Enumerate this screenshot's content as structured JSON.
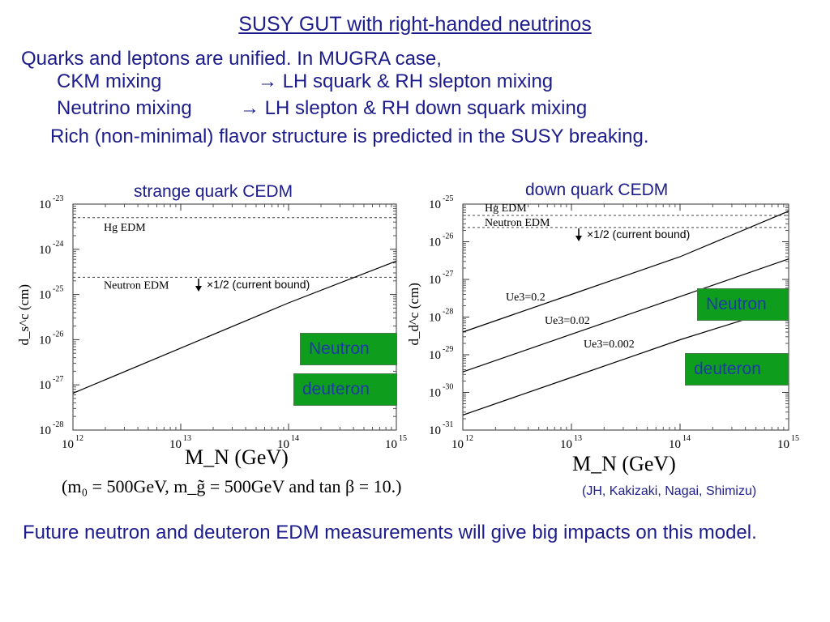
{
  "slide": {
    "title": "SUSY GUT with right-handed neutrinos",
    "intro": "Quarks and leptons are unified. In MUGRA case,",
    "mix1_left": "CKM mixing",
    "mix1_right": "→ LH squark & RH slepton mixing",
    "mix2_left": "Neutrino mixing",
    "mix2_right": "→ LH slepton & RH down squark mixing",
    "rich": "Rich (non-minimal) flavor structure is predicted in the SUSY breaking.",
    "footer": "Future neutron and deuteron EDM measurements will give big impacts on this model.",
    "citation": "(JH, Kakizaki, Nagai, Shimizu)",
    "params": "(m₀ = 500GeV, m_g̃ = 500GeV and tan β = 10.)",
    "x_axis_title": "M_N (GeV)",
    "neutron_label": "Neutron",
    "deuteron_label": "deuteron",
    "bound_label": "×1/2 (current bound)",
    "colors": {
      "text": "#1c1c8c",
      "box": "#0f9d1e",
      "box_text": "#1f3aa8"
    }
  },
  "chart_data": [
    {
      "type": "line",
      "title": "strange quark CEDM",
      "xlabel": "M_N (GeV)",
      "ylabel": "d_s^c (cm)",
      "xscale": "log",
      "yscale": "log",
      "xlim": [
        1000000000000.0,
        1000000000000000.0
      ],
      "ylim": [
        1e-28,
        1e-23
      ],
      "x_ticks": [
        "10^12",
        "10^13",
        "10^14",
        "10^15"
      ],
      "y_ticks": [
        "10^-23",
        "10^-24",
        "10^-25",
        "10^-26",
        "10^-27",
        "10^-28"
      ],
      "series": [
        {
          "x": [
            1000000000000.0,
            10000000000000.0,
            100000000000000.0,
            1000000000000000.0
          ],
          "y": [
            6.5e-28,
            6.5e-27,
            6.5e-26,
            5.5e-25
          ]
        }
      ],
      "reference_lines": [
        {
          "name": "Hg EDM",
          "y": 5e-24
        },
        {
          "name": "Neutron EDM",
          "y": 2.4e-25
        }
      ]
    },
    {
      "type": "line",
      "title": "down quark CEDM",
      "xlabel": "M_N (GeV)",
      "ylabel": "d_d^c (cm)",
      "xscale": "log",
      "yscale": "log",
      "xlim": [
        1000000000000.0,
        1000000000000000.0
      ],
      "ylim": [
        1e-31,
        1e-25
      ],
      "x_ticks": [
        "10^12",
        "10^13",
        "10^14",
        "10^15"
      ],
      "y_ticks": [
        "10^-25",
        "10^-26",
        "10^-27",
        "10^-28",
        "10^-29",
        "10^-30",
        "10^-31"
      ],
      "series": [
        {
          "name": "Ue3=0.2",
          "x": [
            1000000000000.0,
            10000000000000.0,
            100000000000000.0,
            1000000000000000.0
          ],
          "y": [
            4e-29,
            4e-28,
            4e-27,
            6.5e-26
          ]
        },
        {
          "name": "Ue3=0.02",
          "x": [
            1000000000000.0,
            10000000000000.0,
            100000000000000.0,
            1000000000000000.0
          ],
          "y": [
            3.5e-30,
            3.5e-29,
            3.5e-28,
            3.5e-27
          ]
        },
        {
          "name": "Ue3=0.002",
          "x": [
            1000000000000.0,
            10000000000000.0,
            100000000000000.0,
            1000000000000000.0
          ],
          "y": [
            2.5e-31,
            2.5e-30,
            2.5e-29,
            2e-28
          ]
        }
      ],
      "reference_lines": [
        {
          "name": "Hg EDM",
          "y": 5e-26
        },
        {
          "name": "Neutron EDM",
          "y": 2.4e-26
        }
      ]
    }
  ]
}
